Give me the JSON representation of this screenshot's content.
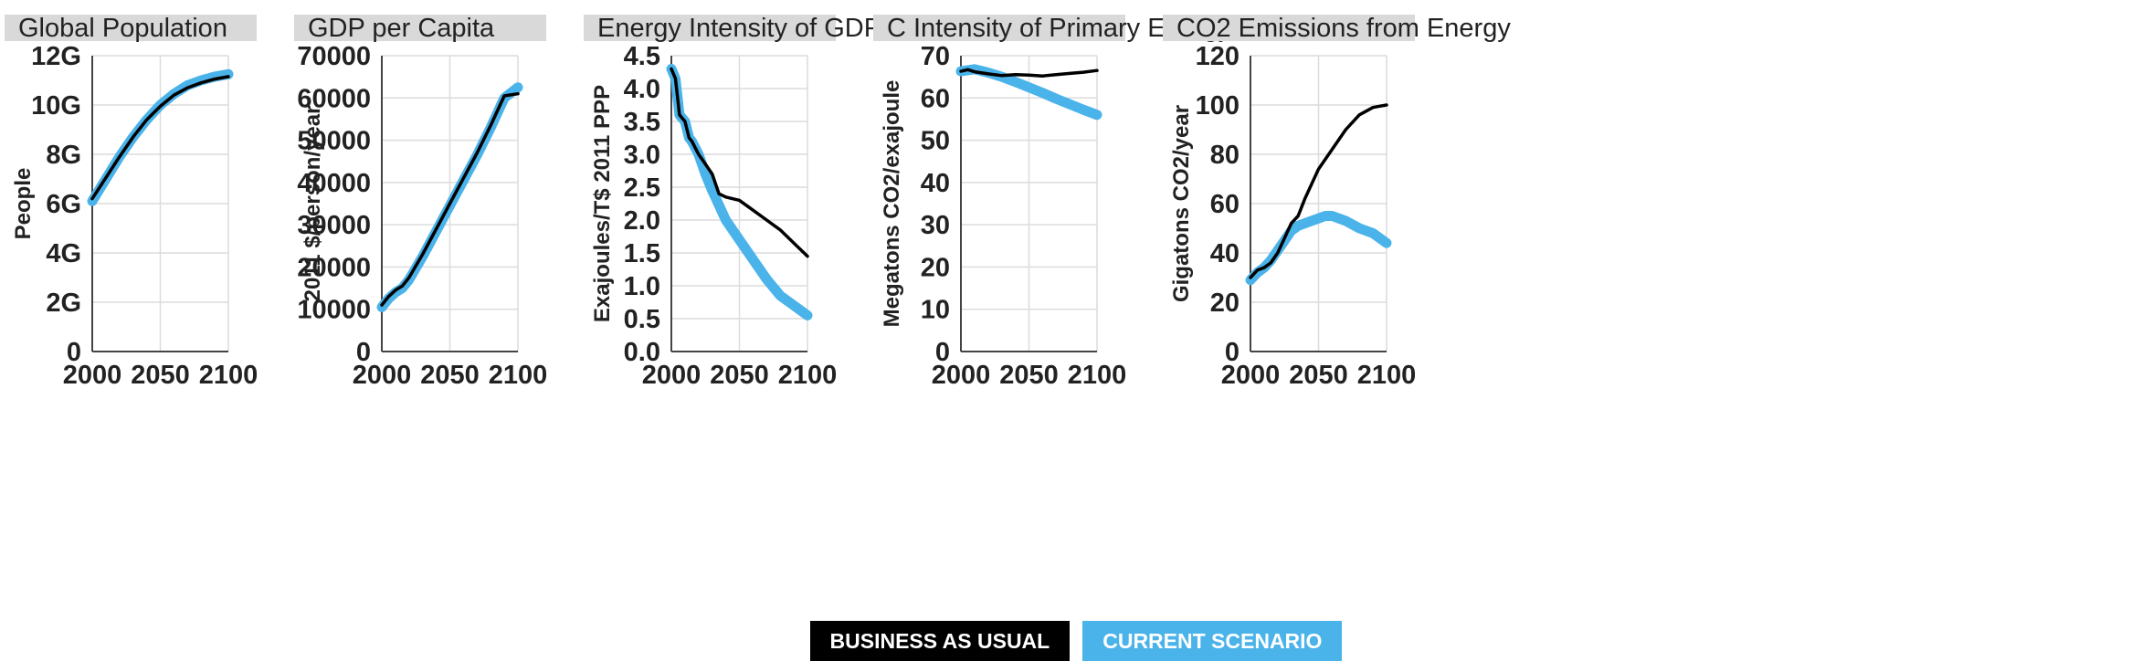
{
  "colors": {
    "bau": "#000000",
    "current": "#4ab3ea",
    "title_bg": "#d9d9d9",
    "grid": "#dcdcdc"
  },
  "legend": {
    "bau_label": "BUSINESS AS USUAL",
    "current_label": "CURRENT SCENARIO"
  },
  "chart_data": [
    {
      "type": "line",
      "title": "Global Population",
      "ylabel": "People",
      "xlim": [
        2000,
        2100
      ],
      "xticks": [
        "2000",
        "2050",
        "2100"
      ],
      "ylim": [
        0,
        12
      ],
      "yticks": [
        0,
        2,
        4,
        6,
        8,
        10,
        12
      ],
      "ytick_labels": [
        "0",
        "2G",
        "4G",
        "6G",
        "8G",
        "10G",
        "12G"
      ],
      "grid": true,
      "series": [
        {
          "name": "CURRENT SCENARIO",
          "color": "#4ab3ea",
          "x": [
            2000,
            2010,
            2020,
            2030,
            2040,
            2050,
            2060,
            2070,
            2080,
            2090,
            2100
          ],
          "y": [
            6.1,
            7.0,
            7.9,
            8.7,
            9.4,
            10.0,
            10.45,
            10.8,
            11.0,
            11.15,
            11.25
          ]
        },
        {
          "name": "BUSINESS AS USUAL",
          "color": "#000000",
          "x": [
            2000,
            2010,
            2020,
            2030,
            2040,
            2050,
            2060,
            2070,
            2080,
            2090,
            2100
          ],
          "y": [
            6.2,
            7.05,
            7.9,
            8.7,
            9.4,
            9.95,
            10.4,
            10.7,
            10.9,
            11.05,
            11.15
          ]
        }
      ]
    },
    {
      "type": "line",
      "title": "GDP per Capita",
      "ylabel": "2011 $/person/year",
      "xlim": [
        2000,
        2100
      ],
      "xticks": [
        "2000",
        "2050",
        "2100"
      ],
      "ylim": [
        0,
        70000
      ],
      "yticks": [
        0,
        10000,
        20000,
        30000,
        40000,
        50000,
        60000,
        70000
      ],
      "ytick_labels": [
        "0",
        "10000",
        "20000",
        "30000",
        "40000",
        "50000",
        "60000",
        "70000"
      ],
      "grid": true,
      "series": [
        {
          "name": "CURRENT SCENARIO",
          "color": "#4ab3ea",
          "x": [
            2000,
            2005,
            2010,
            2015,
            2020,
            2030,
            2040,
            2050,
            2060,
            2070,
            2080,
            2090,
            2100
          ],
          "y": [
            10500,
            12500,
            14000,
            15000,
            17000,
            22500,
            28500,
            34500,
            40500,
            46500,
            53000,
            60000,
            62500
          ]
        },
        {
          "name": "BUSINESS AS USUAL",
          "color": "#000000",
          "x": [
            2000,
            2005,
            2010,
            2015,
            2020,
            2030,
            2040,
            2050,
            2060,
            2070,
            2080,
            2090,
            2100
          ],
          "y": [
            11000,
            13000,
            14500,
            15500,
            17500,
            23000,
            29000,
            35000,
            41000,
            47000,
            53500,
            60500,
            61000
          ]
        }
      ]
    },
    {
      "type": "line",
      "title": "Energy Intensity of GDP",
      "ylabel": "Exajoules/T$ 2011 PPP",
      "xlim": [
        2000,
        2100
      ],
      "xticks": [
        "2000",
        "2050",
        "2100"
      ],
      "ylim": [
        0,
        4.5
      ],
      "yticks": [
        0,
        0.5,
        1,
        1.5,
        2,
        2.5,
        3,
        3.5,
        4,
        4.5
      ],
      "ytick_labels": [
        "0.0",
        "0.5",
        "1.0",
        "1.5",
        "2.0",
        "2.5",
        "3.0",
        "3.5",
        "4.0",
        "4.5"
      ],
      "grid": true,
      "series": [
        {
          "name": "CURRENT SCENARIO",
          "color": "#4ab3ea",
          "x": [
            2000,
            2003,
            2006,
            2010,
            2013,
            2015,
            2020,
            2025,
            2030,
            2040,
            2050,
            2060,
            2070,
            2080,
            2090,
            2100
          ],
          "y": [
            4.3,
            4.15,
            3.6,
            3.5,
            3.25,
            3.2,
            3.0,
            2.7,
            2.45,
            2.0,
            1.7,
            1.4,
            1.1,
            0.85,
            0.7,
            0.55
          ]
        },
        {
          "name": "BUSINESS AS USUAL",
          "color": "#000000",
          "x": [
            2000,
            2003,
            2006,
            2010,
            2013,
            2015,
            2020,
            2025,
            2030,
            2035,
            2040,
            2050,
            2060,
            2070,
            2080,
            2090,
            2100
          ],
          "y": [
            4.3,
            4.15,
            3.6,
            3.5,
            3.25,
            3.2,
            3.0,
            2.85,
            2.7,
            2.4,
            2.35,
            2.3,
            2.15,
            2.0,
            1.85,
            1.65,
            1.45
          ]
        }
      ]
    },
    {
      "type": "line",
      "title": "C Intensity of Primary Energy",
      "ylabel": "Megatons CO2/exajoule",
      "xlim": [
        2000,
        2100
      ],
      "xticks": [
        "2000",
        "2050",
        "2100"
      ],
      "ylim": [
        0,
        70
      ],
      "yticks": [
        0,
        10,
        20,
        30,
        40,
        50,
        60,
        70
      ],
      "ytick_labels": [
        "0",
        "10",
        "20",
        "30",
        "40",
        "50",
        "60",
        "70"
      ],
      "grid": true,
      "series": [
        {
          "name": "CURRENT SCENARIO",
          "color": "#4ab3ea",
          "x": [
            2000,
            2010,
            2020,
            2030,
            2040,
            2050,
            2060,
            2070,
            2080,
            2090,
            2100
          ],
          "y": [
            66.3,
            66.8,
            66.0,
            65.0,
            63.8,
            62.5,
            61.2,
            59.8,
            58.5,
            57.2,
            56.0
          ]
        },
        {
          "name": "BUSINESS AS USUAL",
          "color": "#000000",
          "x": [
            2000,
            2005,
            2010,
            2020,
            2030,
            2040,
            2050,
            2060,
            2070,
            2080,
            2090,
            2100
          ],
          "y": [
            66.3,
            66.7,
            66.2,
            65.7,
            65.3,
            65.5,
            65.4,
            65.2,
            65.5,
            65.8,
            66.1,
            66.5
          ]
        }
      ]
    },
    {
      "type": "line",
      "title": "CO2 Emissions from Energy",
      "ylabel": "Gigatons CO2/year",
      "xlim": [
        2000,
        2100
      ],
      "xticks": [
        "2000",
        "2050",
        "2100"
      ],
      "ylim": [
        0,
        120
      ],
      "yticks": [
        0,
        20,
        40,
        60,
        80,
        100,
        120
      ],
      "ytick_labels": [
        "0",
        "20",
        "40",
        "60",
        "80",
        "100",
        "120"
      ],
      "grid": true,
      "series": [
        {
          "name": "CURRENT SCENARIO",
          "color": "#4ab3ea",
          "x": [
            2000,
            2005,
            2010,
            2015,
            2020,
            2025,
            2030,
            2035,
            2040,
            2050,
            2055,
            2060,
            2070,
            2080,
            2090,
            2100
          ],
          "y": [
            29,
            32,
            34,
            37,
            41,
            45,
            49,
            51,
            52,
            54,
            55,
            55,
            53,
            50,
            48,
            44
          ]
        },
        {
          "name": "BUSINESS AS USUAL",
          "color": "#000000",
          "x": [
            2000,
            2005,
            2010,
            2015,
            2020,
            2025,
            2030,
            2035,
            2040,
            2050,
            2060,
            2070,
            2080,
            2090,
            2095,
            2100
          ],
          "y": [
            30,
            33,
            34,
            36,
            40,
            46,
            52,
            55,
            62,
            74,
            82,
            90,
            96,
            99,
            99.5,
            100
          ]
        }
      ]
    }
  ]
}
